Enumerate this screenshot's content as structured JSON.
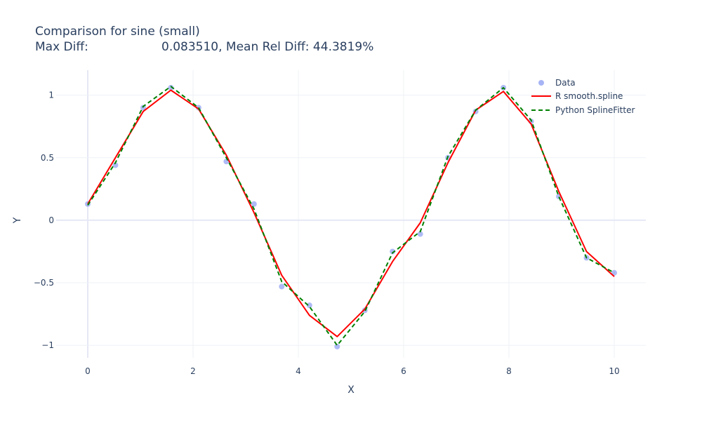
{
  "chart_data": {
    "type": "line",
    "title_line1": "Comparison for sine (small)",
    "title_line2_prefix": "Max Diff:",
    "title_line2_rest": "0.083510, Mean Rel Diff: 44.3819%",
    "xlabel": "X",
    "ylabel": "Y",
    "xlim": [
      -0.6,
      10.6
    ],
    "ylim": [
      -1.1,
      1.2
    ],
    "xticks": [
      0,
      2,
      4,
      6,
      8,
      10
    ],
    "xtick_labels": [
      "0",
      "2",
      "4",
      "6",
      "8",
      "10"
    ],
    "yticks": [
      -1,
      -0.5,
      0,
      0.5,
      1
    ],
    "ytick_labels": [
      "−1",
      "−0.5",
      "0",
      "0.5",
      "1"
    ],
    "grid": true,
    "legend_position": "top-right",
    "series": [
      {
        "name": "Data",
        "kind": "markers",
        "color": "#a6b4f5",
        "x": [
          0,
          0.526,
          1.053,
          1.579,
          2.105,
          2.632,
          3.158,
          3.684,
          4.211,
          4.737,
          5.263,
          5.789,
          6.316,
          6.842,
          7.368,
          7.895,
          8.421,
          8.947,
          9.474,
          10
        ],
        "y": [
          0.13,
          0.44,
          0.9,
          1.06,
          0.9,
          0.47,
          0.13,
          -0.53,
          -0.68,
          -1.01,
          -0.72,
          -0.25,
          -0.11,
          0.5,
          0.87,
          1.06,
          0.79,
          0.19,
          -0.3,
          -0.42
        ]
      },
      {
        "name": "R smooth.spline",
        "kind": "line",
        "color": "#ff0000",
        "dash": "solid",
        "x": [
          0,
          0.526,
          1.053,
          1.579,
          2.105,
          2.632,
          3.158,
          3.684,
          4.211,
          4.737,
          5.263,
          5.789,
          6.316,
          6.842,
          7.368,
          7.895,
          8.421,
          8.947,
          9.474,
          10
        ],
        "y": [
          0.13,
          0.5,
          0.87,
          1.04,
          0.89,
          0.52,
          0.06,
          -0.44,
          -0.76,
          -0.93,
          -0.71,
          -0.33,
          -0.02,
          0.46,
          0.88,
          1.03,
          0.77,
          0.23,
          -0.25,
          -0.45
        ]
      },
      {
        "name": "Python SplineFitter",
        "kind": "line",
        "color": "#008000",
        "dash": "dashed",
        "x": [
          0,
          0.526,
          1.053,
          1.579,
          2.105,
          2.632,
          3.158,
          3.684,
          4.211,
          4.737,
          5.263,
          5.789,
          6.316,
          6.842,
          7.368,
          7.895,
          8.421,
          8.947,
          9.474,
          10
        ],
        "y": [
          0.12,
          0.46,
          0.91,
          1.07,
          0.9,
          0.5,
          0.09,
          -0.49,
          -0.69,
          -1.0,
          -0.73,
          -0.26,
          -0.09,
          0.51,
          0.88,
          1.06,
          0.8,
          0.19,
          -0.3,
          -0.42
        ]
      }
    ]
  }
}
